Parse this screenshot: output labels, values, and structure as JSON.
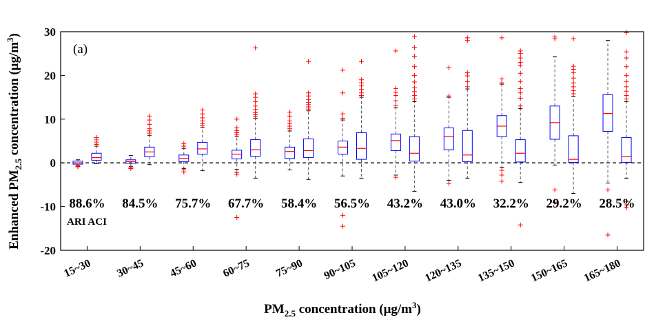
{
  "chart_data": {
    "type": "box",
    "panel_label": "(a)",
    "ylabel": "Enhanced PM2.5 concentration (μg/m3)",
    "ylabel_parts": {
      "pre": "Enhanced PM",
      "sub": "2.5",
      "mid": " concentration (μg/m",
      "sup": "3",
      "post": ")"
    },
    "xlabel": "PM2.5 concentration (μg/m3)",
    "xlabel_parts": {
      "pre": "PM",
      "sub": "2.5",
      "mid": " concentration (μg/m",
      "sup": "3",
      "post": ")"
    },
    "ylim": [
      -20,
      30
    ],
    "yticks": [
      -20,
      -10,
      0,
      10,
      20,
      30
    ],
    "reference_line": 0,
    "legend_text": "ARI ACI",
    "colors": {
      "box": "#0000ff",
      "median": "#ff0000",
      "outlier": "#ff0000",
      "whisker": "#555555"
    },
    "categories": [
      "15~30",
      "30~45",
      "45~60",
      "60~75",
      "75~90",
      "90~105",
      "105~120",
      "120~135",
      "135~150",
      "150~165",
      "165~180"
    ],
    "percentages": [
      "88.6%",
      "84.5%",
      "75.7%",
      "67.7%",
      "58.4%",
      "56.5%",
      "43.2%",
      "43.0%",
      "32.2%",
      "29.2%",
      "28.5%"
    ],
    "series": [
      {
        "boxes": [
          {
            "q1": -0.3,
            "median": 0.0,
            "q3": 0.4,
            "wlo": -0.6,
            "whi": 0.7,
            "outliers": [
              -0.9,
              -0.8
            ]
          },
          {
            "q1": -0.1,
            "median": 0.3,
            "q3": 0.7,
            "wlo": -0.8,
            "whi": 1.7,
            "outliers": [
              -1.1,
              -1.3
            ]
          },
          {
            "q1": 0.3,
            "median": 1.0,
            "q3": 1.8,
            "wlo": -1.3,
            "whi": 3.3,
            "outliers": [
              -1.6,
              -2.1,
              3.8,
              4.4
            ]
          },
          {
            "q1": 0.9,
            "median": 2.0,
            "q3": 2.9,
            "wlo": -1.5,
            "whi": 6.0,
            "outliers": [
              -2.2,
              -2.6,
              6.4,
              6.9,
              7.4,
              8.0,
              10.0,
              -12.5
            ]
          },
          {
            "q1": 1.0,
            "median": 2.6,
            "q3": 3.6,
            "wlo": -1.6,
            "whi": 7.3,
            "outliers": [
              7.8,
              8.4,
              9.0,
              9.6,
              10.7,
              11.6
            ]
          },
          {
            "q1": 2.0,
            "median": 3.6,
            "q3": 5.0,
            "wlo": -3.0,
            "whi": 9.8,
            "outliers": [
              10.2,
              11.2,
              16.0,
              21.2,
              -14.5,
              -12.0
            ]
          },
          {
            "q1": 2.8,
            "median": 5.1,
            "q3": 6.6,
            "wlo": -2.8,
            "whi": 12.6,
            "outliers": [
              13.2,
              14.2,
              15.4,
              16.1,
              17.0,
              25.6,
              -3.3
            ]
          },
          {
            "q1": 3.0,
            "median": 6.0,
            "q3": 8.0,
            "wlo": -4.0,
            "whi": 15.0,
            "outliers": [
              15.3,
              21.8,
              -4.7
            ]
          },
          {
            "q1": 6.0,
            "median": 8.4,
            "q3": 10.8,
            "wlo": -1.0,
            "whi": 18.0,
            "outliers": [
              18.3,
              19.2,
              28.6,
              -1.7,
              -2.8,
              -4.2
            ]
          },
          {
            "q1": 5.4,
            "median": 9.2,
            "q3": 13.0,
            "wlo": -0.5,
            "whi": 24.3,
            "outliers": [
              28.4,
              28.8,
              -6.2,
              -9.0
            ]
          },
          {
            "q1": 7.2,
            "median": 11.3,
            "q3": 15.6,
            "wlo": -4.6,
            "whi": 28.0,
            "outliers": [
              -6.2,
              -16.5
            ]
          }
        ]
      },
      {
        "boxes": [
          {
            "q1": 0.6,
            "median": 1.2,
            "q3": 2.2,
            "wlo": -0.2,
            "whi": 3.8,
            "outliers": [
              4.2,
              4.6,
              5.0,
              5.4,
              5.8
            ]
          },
          {
            "q1": 1.4,
            "median": 2.5,
            "q3": 3.6,
            "wlo": -0.4,
            "whi": 6.3,
            "outliers": [
              6.8,
              7.3,
              7.8,
              8.8,
              9.8,
              10.7
            ]
          },
          {
            "q1": 2.0,
            "median": 3.2,
            "q3": 4.7,
            "wlo": -1.8,
            "whi": 8.1,
            "outliers": [
              8.5,
              9.0,
              9.6,
              10.3,
              11.2,
              12.1
            ]
          },
          {
            "q1": 1.5,
            "median": 3.0,
            "q3": 5.3,
            "wlo": -3.5,
            "whi": 10.2,
            "outliers": [
              10.6,
              11.0,
              11.5,
              12.2,
              13.0,
              14.0,
              15.0,
              15.8,
              26.3
            ]
          },
          {
            "q1": 1.2,
            "median": 2.8,
            "q3": 5.5,
            "wlo": -3.8,
            "whi": 11.9,
            "outliers": [
              12.3,
              12.8,
              13.3,
              13.8,
              14.5,
              15.3,
              16.0,
              23.2
            ]
          },
          {
            "q1": 0.8,
            "median": 3.3,
            "q3": 6.9,
            "wlo": -3.5,
            "whi": 15.0,
            "outliers": [
              15.4,
              16.0,
              16.8,
              17.6,
              18.3,
              19.0,
              23.2
            ]
          },
          {
            "q1": 0.4,
            "median": 2.2,
            "q3": 6.0,
            "wlo": -6.5,
            "whi": 14.0,
            "outliers": [
              14.6,
              15.4,
              16.3,
              17.2,
              18.5,
              20.0,
              22.0,
              24.4,
              26.4,
              28.9
            ]
          },
          {
            "q1": 0.3,
            "median": 1.8,
            "q3": 7.4,
            "wlo": -3.5,
            "whi": 16.9,
            "outliers": [
              17.4,
              18.6,
              19.9,
              20.6,
              28.0,
              28.6
            ]
          },
          {
            "q1": 0.2,
            "median": 2.2,
            "q3": 5.3,
            "wlo": -4.5,
            "whi": 12.4,
            "outliers": [
              13.0,
              14.8,
              16.0,
              17.0,
              18.6,
              20.5,
              22.3,
              23.0,
              24.0,
              25.0,
              25.6,
              -14.2
            ]
          },
          {
            "q1": 0.1,
            "median": 0.8,
            "q3": 6.2,
            "wlo": -7.0,
            "whi": 15.2,
            "outliers": [
              15.8,
              16.5,
              17.4,
              18.3,
              19.4,
              20.6,
              21.4,
              22.1,
              28.4
            ]
          },
          {
            "q1": 0.1,
            "median": 1.5,
            "q3": 5.8,
            "wlo": -3.5,
            "whi": 14.0,
            "outliers": [
              14.6,
              15.4,
              16.4,
              17.4,
              18.6,
              20.0,
              22.0,
              24.0,
              25.4,
              29.8,
              -8.8,
              -9.6,
              -10.3
            ]
          }
        ]
      }
    ]
  }
}
